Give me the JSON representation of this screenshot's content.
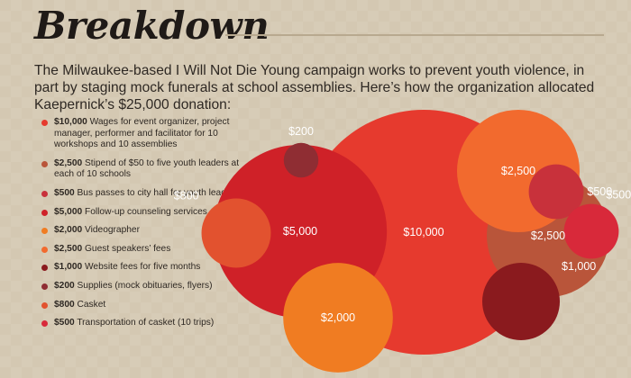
{
  "title": "Breakdown",
  "intro": "The Milwaukee-based I Will Not Die Young campaign works to prevent youth violence, in part by staging mock funerals at school assemblies. Here’s how the organization allocated Kaepernick’s $25,000 donation:",
  "chart_data": {
    "type": "bubble",
    "title": "Breakdown",
    "total": 25000,
    "items": [
      {
        "amount": "$10,000",
        "value": 10000,
        "desc": "Wages for event organizer, project manager, performer and facilitator for 10 workshops and 10 assemblies",
        "color": "#e63a2e"
      },
      {
        "amount": "$2,500",
        "value": 2500,
        "desc": "Stipend of $50 to five youth leaders at each of 10 schools",
        "color": "#b9553a"
      },
      {
        "amount": "$500",
        "value": 500,
        "desc": "Bus passes to city hall for youth leaders",
        "color": "#c8313b"
      },
      {
        "amount": "$5,000",
        "value": 5000,
        "desc": "Follow-up counseling services",
        "color": "#cf2128"
      },
      {
        "amount": "$2,000",
        "value": 2000,
        "desc": "Videographer",
        "color": "#f07c22"
      },
      {
        "amount": "$2,500",
        "value": 2500,
        "desc": "Guest speakers’ fees",
        "color": "#f26a2e"
      },
      {
        "amount": "$1,000",
        "value": 1000,
        "desc": "Website fees for five months",
        "color": "#8a1a1e"
      },
      {
        "amount": "$200",
        "value": 200,
        "desc": "Supplies (mock obituaries, flyers)",
        "color": "#8f2d33"
      },
      {
        "amount": "$800",
        "value": 800,
        "desc": "Casket",
        "color": "#e2522f"
      },
      {
        "amount": "$500",
        "value": 500,
        "desc": "Transportation of casket (10 trips)",
        "color": "#d8293a"
      }
    ]
  }
}
